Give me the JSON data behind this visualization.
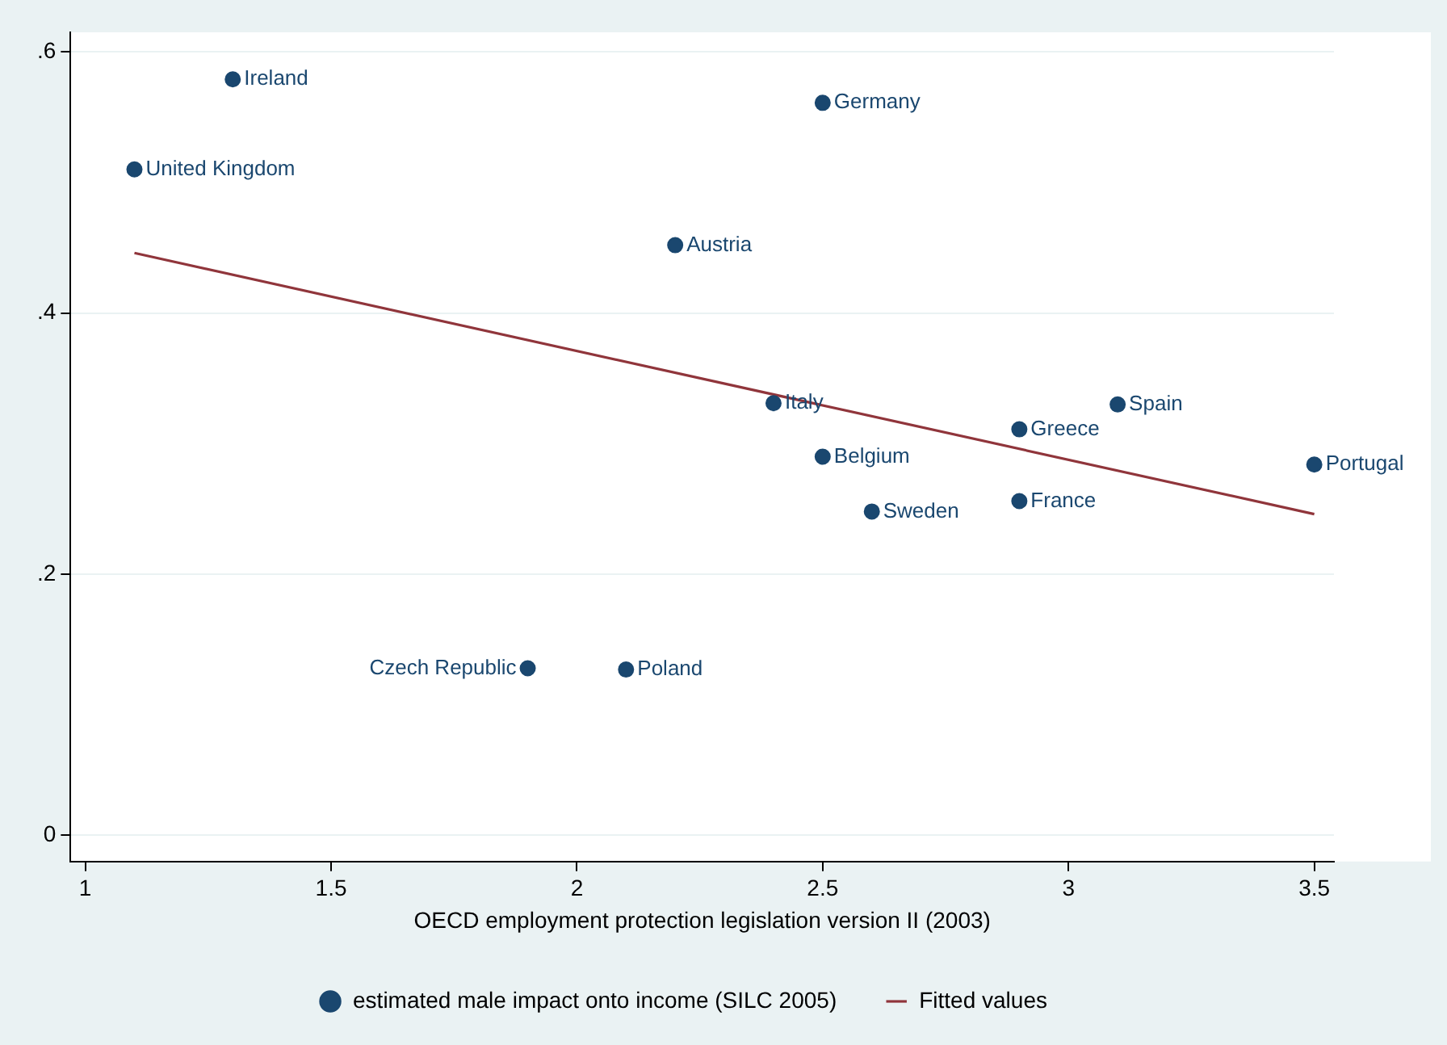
{
  "chart_data": {
    "type": "scatter",
    "xlabel": "OECD employment protection legislation version II (2003)",
    "xlim": [
      0.97,
      3.54
    ],
    "xticks": [
      1,
      1.5,
      2,
      2.5,
      3,
      3.5
    ],
    "ylim": [
      -0.02,
      0.615
    ],
    "yticks": [
      {
        "value": 0,
        "label": "0"
      },
      {
        "value": 0.2,
        "label": ".2"
      },
      {
        "value": 0.4,
        "label": ".4"
      },
      {
        "value": 0.6,
        "label": ".6"
      }
    ],
    "grid": "y",
    "legend": "bottom",
    "series": [
      {
        "name": "estimated male impact onto income (SILC 2005)",
        "marker": "circle",
        "color": "#1a476f",
        "x": [
          1.3,
          1.1,
          2.5,
          2.2,
          2.4,
          3.1,
          2.9,
          3.5,
          2.5,
          2.9,
          2.6,
          2.1,
          1.9
        ],
        "values": [
          0.579,
          0.51,
          0.561,
          0.452,
          0.331,
          0.33,
          0.311,
          0.284,
          0.29,
          0.256,
          0.248,
          0.127,
          0.128
        ]
      },
      {
        "name": "Fitted values",
        "type": "line",
        "marker": "none",
        "color": "#90353b",
        "line_style": "solid",
        "x": [
          1.1,
          3.5
        ],
        "values": [
          0.446,
          0.246
        ]
      }
    ],
    "annotations": [
      {
        "text": "Ireland",
        "x": 1.3,
        "y": 0.579
      },
      {
        "text": "United Kingdom",
        "x": 1.1,
        "y": 0.51
      },
      {
        "text": "Germany",
        "x": 2.5,
        "y": 0.561
      },
      {
        "text": "Austria",
        "x": 2.2,
        "y": 0.452
      },
      {
        "text": "Italy",
        "x": 2.4,
        "y": 0.331
      },
      {
        "text": "Spain",
        "x": 3.1,
        "y": 0.33
      },
      {
        "text": "Greece",
        "x": 2.9,
        "y": 0.311
      },
      {
        "text": "Portugal",
        "x": 3.5,
        "y": 0.284
      },
      {
        "text": "Belgium",
        "x": 2.5,
        "y": 0.29
      },
      {
        "text": "France",
        "x": 2.9,
        "y": 0.256
      },
      {
        "text": "Sweden",
        "x": 2.6,
        "y": 0.248
      },
      {
        "text": "Poland",
        "x": 2.1,
        "y": 0.127
      },
      {
        "text": "Czech Republic",
        "x": 1.9,
        "y": 0.128
      }
    ]
  }
}
